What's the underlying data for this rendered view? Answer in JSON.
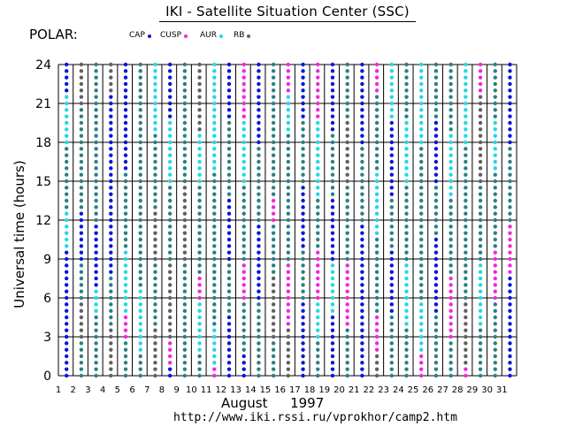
{
  "header": {
    "title": "IKI - Satellite Situation Center (SSC)",
    "satellite": "POLAR:"
  },
  "legend": {
    "items": [
      {
        "label": "CAP",
        "color": "#0a14d8"
      },
      {
        "label": "CUSP",
        "color": "#f028e0"
      },
      {
        "label": "AUR",
        "color": "#22d8e4"
      },
      {
        "label": "RB",
        "color": "#606060"
      }
    ]
  },
  "colors": {
    "PS": "#2a8080"
  },
  "chart_data": {
    "type": "scatter",
    "title": "IKI - Satellite Situation Center (SSC)",
    "ylabel": "Universal time (hours)",
    "xlabel_month": "August",
    "xlabel_year": "1997",
    "ylim": [
      0,
      24
    ],
    "yticks": [
      0,
      3,
      6,
      9,
      12,
      15,
      18,
      21,
      24
    ],
    "xticks": [
      1,
      2,
      3,
      4,
      5,
      6,
      7,
      8,
      9,
      10,
      11,
      12,
      13,
      14,
      15,
      16,
      17,
      18,
      19,
      20,
      21,
      22,
      23,
      24,
      25,
      26,
      27,
      28,
      29,
      30,
      31
    ],
    "grid": true,
    "sample_interval_hours": 0.5,
    "region_codes": [
      "CAP",
      "CUSP",
      "AUR",
      "RB",
      "PS"
    ],
    "day_runs": [
      [
        [
          0,
          10,
          "CAP"
        ],
        [
          10,
          13,
          "AUR"
        ],
        [
          13,
          18,
          "PS"
        ],
        [
          18,
          22,
          "AUR"
        ],
        [
          22,
          24.5,
          "CAP"
        ]
      ],
      [
        [
          0,
          3,
          "PS"
        ],
        [
          3,
          6,
          "RB"
        ],
        [
          6,
          9,
          "PS"
        ],
        [
          9,
          13,
          "CAP"
        ],
        [
          13,
          21,
          "PS"
        ],
        [
          21,
          24.5,
          "RB"
        ]
      ],
      [
        [
          0,
          5,
          "PS"
        ],
        [
          5,
          7,
          "AUR"
        ],
        [
          7,
          12,
          "CAP"
        ],
        [
          12,
          18,
          "PS"
        ],
        [
          18,
          24.5,
          "PS"
        ]
      ],
      [
        [
          0,
          4,
          "RB"
        ],
        [
          4,
          8,
          "PS"
        ],
        [
          8,
          12,
          "CAP"
        ],
        [
          12,
          16,
          "CAP"
        ],
        [
          16,
          22,
          "CAP"
        ],
        [
          22,
          24.5,
          "RB"
        ]
      ],
      [
        [
          0,
          3,
          "PS"
        ],
        [
          3,
          5,
          "CUSP"
        ],
        [
          5,
          10,
          "AUR"
        ],
        [
          10,
          16,
          "PS"
        ],
        [
          16,
          24.5,
          "CAP"
        ]
      ],
      [
        [
          0,
          2,
          "PS"
        ],
        [
          2,
          7,
          "AUR"
        ],
        [
          7,
          12,
          "PS"
        ],
        [
          12,
          17,
          "PS"
        ],
        [
          17,
          24.5,
          "PS"
        ]
      ],
      [
        [
          0,
          4,
          "RB"
        ],
        [
          4,
          9,
          "PS"
        ],
        [
          9,
          13,
          "RB"
        ],
        [
          13,
          19,
          "PS"
        ],
        [
          19,
          24.5,
          "AUR"
        ]
      ],
      [
        [
          0,
          1,
          "CAP"
        ],
        [
          1,
          3,
          "CUSP"
        ],
        [
          3,
          9,
          "RB"
        ],
        [
          9,
          15,
          "PS"
        ],
        [
          15,
          20,
          "AUR"
        ],
        [
          20,
          24.5,
          "CAP"
        ]
      ],
      [
        [
          0,
          5,
          "PS"
        ],
        [
          5,
          9,
          "PS"
        ],
        [
          9,
          15,
          "RB"
        ],
        [
          15,
          20,
          "PS"
        ],
        [
          20,
          24.5,
          "PS"
        ]
      ],
      [
        [
          0,
          2,
          "PS"
        ],
        [
          2,
          6,
          "AUR"
        ],
        [
          6,
          8,
          "CUSP"
        ],
        [
          8,
          15,
          "PS"
        ],
        [
          15,
          19,
          "AUR"
        ],
        [
          19,
          24.5,
          "RB"
        ]
      ],
      [
        [
          0,
          1,
          "CUSP"
        ],
        [
          1,
          4,
          "AUR"
        ],
        [
          4,
          10,
          "PS"
        ],
        [
          10,
          16,
          "PS"
        ],
        [
          16,
          24.5,
          "AUR"
        ]
      ],
      [
        [
          0,
          5,
          "CAP"
        ],
        [
          5,
          9,
          "PS"
        ],
        [
          9,
          14,
          "CAP"
        ],
        [
          14,
          20,
          "PS"
        ],
        [
          20,
          24.5,
          "CAP"
        ]
      ],
      [
        [
          0,
          2,
          "CAP"
        ],
        [
          2,
          6,
          "PS"
        ],
        [
          6,
          9,
          "CUSP"
        ],
        [
          9,
          15,
          "PS"
        ],
        [
          15,
          20,
          "AUR"
        ],
        [
          20,
          24.5,
          "CUSP"
        ]
      ],
      [
        [
          0,
          6,
          "PS"
        ],
        [
          6,
          12,
          "CAP"
        ],
        [
          12,
          18,
          "PS"
        ],
        [
          18,
          24.5,
          "CAP"
        ]
      ],
      [
        [
          0,
          3,
          "PS"
        ],
        [
          3,
          8,
          "RB"
        ],
        [
          8,
          12,
          "PS"
        ],
        [
          12,
          14,
          "CUSP"
        ],
        [
          14,
          18,
          "PS"
        ],
        [
          18,
          24.5,
          "PS"
        ]
      ],
      [
        [
          0,
          4,
          "RB"
        ],
        [
          4,
          9,
          "CUSP"
        ],
        [
          9,
          13,
          "PS"
        ],
        [
          13,
          19,
          "PS"
        ],
        [
          19,
          22,
          "AUR"
        ],
        [
          22,
          24.5,
          "CUSP"
        ]
      ],
      [
        [
          0,
          6,
          "CAP"
        ],
        [
          6,
          10,
          "PS"
        ],
        [
          10,
          15,
          "CAP"
        ],
        [
          15,
          20,
          "PS"
        ],
        [
          20,
          24.5,
          "CAP"
        ]
      ],
      [
        [
          0,
          3,
          "PS"
        ],
        [
          3,
          6,
          "AUR"
        ],
        [
          6,
          10,
          "CUSP"
        ],
        [
          10,
          14,
          "PS"
        ],
        [
          14,
          20,
          "AUR"
        ],
        [
          20,
          24.5,
          "CUSP"
        ]
      ],
      [
        [
          0,
          5,
          "CAP"
        ],
        [
          5,
          9,
          "AUR"
        ],
        [
          9,
          14,
          "CAP"
        ],
        [
          14,
          19,
          "PS"
        ],
        [
          19,
          24.5,
          "CAP"
        ]
      ],
      [
        [
          0,
          4,
          "PS"
        ],
        [
          4,
          9,
          "CUSP"
        ],
        [
          9,
          15,
          "PS"
        ],
        [
          15,
          20,
          "RB"
        ],
        [
          20,
          24.5,
          "PS"
        ]
      ],
      [
        [
          0,
          6,
          "CAP"
        ],
        [
          6,
          12,
          "CAP"
        ],
        [
          12,
          18,
          "PS"
        ],
        [
          18,
          24.5,
          "CAP"
        ]
      ],
      [
        [
          0,
          2,
          "RB"
        ],
        [
          2,
          5,
          "CUSP"
        ],
        [
          5,
          11,
          "PS"
        ],
        [
          11,
          16,
          "AUR"
        ],
        [
          16,
          22,
          "PS"
        ],
        [
          22,
          24.5,
          "CUSP"
        ]
      ],
      [
        [
          0,
          5,
          "PS"
        ],
        [
          5,
          10,
          "CAP"
        ],
        [
          10,
          14,
          "PS"
        ],
        [
          14,
          20,
          "CAP"
        ],
        [
          20,
          24.5,
          "AUR"
        ]
      ],
      [
        [
          0,
          4,
          "PS"
        ],
        [
          4,
          9,
          "AUR"
        ],
        [
          9,
          15,
          "PS"
        ],
        [
          15,
          20,
          "AUR"
        ],
        [
          20,
          24.5,
          "PS"
        ]
      ],
      [
        [
          0,
          2,
          "CUSP"
        ],
        [
          2,
          6,
          "AUR"
        ],
        [
          6,
          12,
          "PS"
        ],
        [
          12,
          18,
          "PS"
        ],
        [
          18,
          24.5,
          "AUR"
        ]
      ],
      [
        [
          0,
          5,
          "PS"
        ],
        [
          5,
          11,
          "CAP"
        ],
        [
          11,
          15,
          "PS"
        ],
        [
          15,
          20,
          "CAP"
        ],
        [
          20,
          24.5,
          "PS"
        ]
      ],
      [
        [
          0,
          3,
          "PS"
        ],
        [
          3,
          8,
          "CUSP"
        ],
        [
          8,
          14,
          "PS"
        ],
        [
          14,
          19,
          "AUR"
        ],
        [
          19,
          24.5,
          "PS"
        ]
      ],
      [
        [
          0,
          1,
          "CUSP"
        ],
        [
          1,
          6,
          "RB"
        ],
        [
          6,
          12,
          "PS"
        ],
        [
          12,
          18,
          "PS"
        ],
        [
          18,
          24.5,
          "AUR"
        ]
      ],
      [
        [
          0,
          4,
          "PS"
        ],
        [
          4,
          9,
          "AUR"
        ],
        [
          9,
          15,
          "PS"
        ],
        [
          15,
          22,
          "RB"
        ],
        [
          22,
          24.5,
          "CUSP"
        ]
      ],
      [
        [
          0,
          6,
          "PS"
        ],
        [
          6,
          10,
          "CUSP"
        ],
        [
          10,
          16,
          "PS"
        ],
        [
          16,
          20,
          "AUR"
        ],
        [
          20,
          24.5,
          "PS"
        ]
      ],
      [
        [
          0,
          3,
          "CAP"
        ],
        [
          3,
          8,
          "CAP"
        ],
        [
          8,
          12,
          "CUSP"
        ],
        [
          12,
          18,
          "PS"
        ],
        [
          18,
          24.5,
          "CAP"
        ]
      ]
    ]
  },
  "footer": {
    "url": "http://www.iki.rssi.ru/vprokhor/camp2.htm"
  }
}
